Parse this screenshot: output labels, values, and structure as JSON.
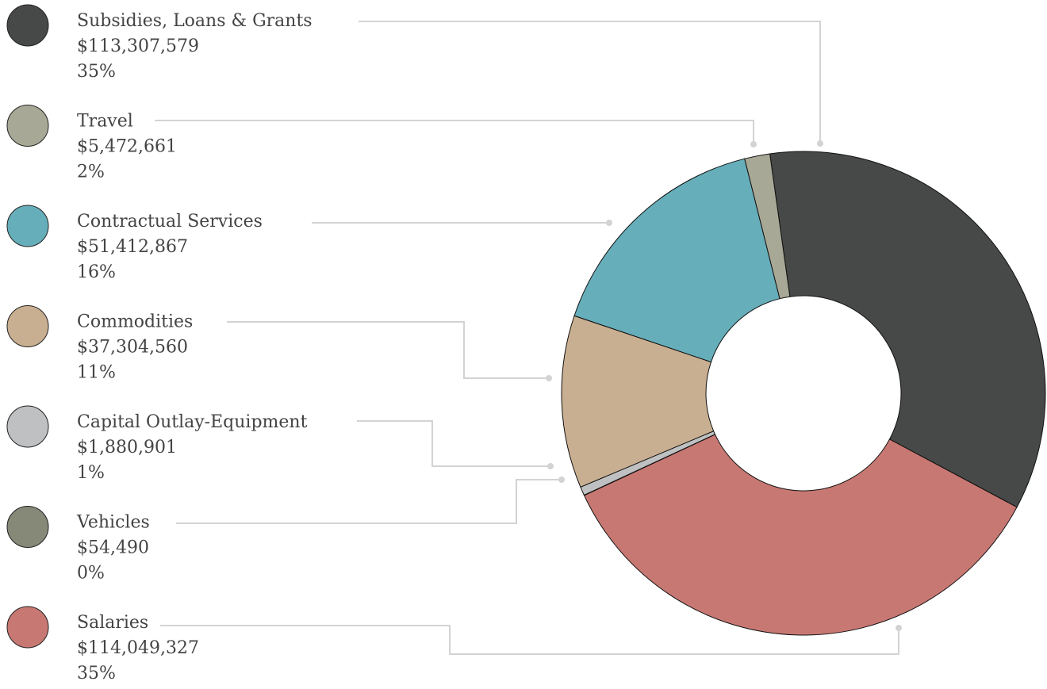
{
  "chart_data": {
    "type": "donut",
    "categories": [
      "Subsidies, Loans & Grants",
      "Salaries",
      "Vehicles",
      "Capital Outlay-Equipment",
      "Commodities",
      "Contractual Services",
      "Travel"
    ],
    "values": [
      113307579,
      114049327,
      54490,
      1880901,
      37304560,
      51412867,
      5472661
    ],
    "value_labels": [
      "$113,307,579",
      "$114,049,327",
      "$54,490",
      "$1,880,901",
      "$37,304,560",
      "$51,412,867",
      "$5,472,661"
    ],
    "shares": [
      35,
      35,
      0,
      1,
      11,
      16,
      2
    ],
    "share_labels": [
      "35%",
      "35%",
      "0%",
      "1%",
      "11%",
      "16%",
      "2%"
    ],
    "colors": [
      "#474948",
      "#c87872",
      "#868878",
      "#bfc0c2",
      "#c9af91",
      "#66aeba",
      "#a8a896"
    ]
  }
}
